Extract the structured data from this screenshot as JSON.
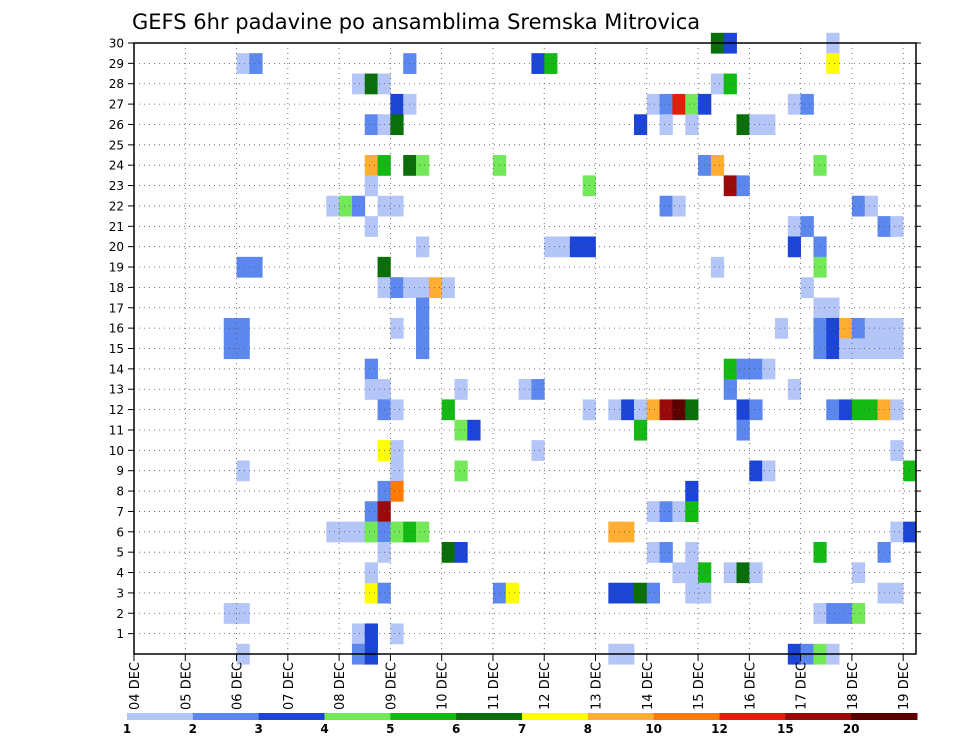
{
  "chart_data": {
    "type": "heatmap",
    "title": "GEFS 6hr padavine po ansamblima Sremska Mitrovica",
    "xlabel": "",
    "ylabel": "",
    "x_ticks": [
      "04 DEC",
      "05 DEC",
      "06 DEC",
      "07 DEC",
      "08 DEC",
      "09 DEC",
      "10 DEC",
      "11 DEC",
      "12 DEC",
      "13 DEC",
      "14 DEC",
      "15 DEC",
      "16 DEC",
      "17 DEC",
      "18 DEC",
      "19 DEC"
    ],
    "x_range_days": [
      0,
      15.25
    ],
    "y_range": [
      0,
      30
    ],
    "y_ticks": [
      1,
      2,
      3,
      4,
      5,
      6,
      7,
      8,
      9,
      10,
      11,
      12,
      13,
      14,
      15,
      16,
      17,
      18,
      19,
      20,
      21,
      22,
      23,
      24,
      25,
      26,
      27,
      28,
      29,
      30
    ],
    "grid": true,
    "legend_position": "bottom",
    "color_scale": {
      "colors": [
        "#b3c6f7",
        "#5c87ee",
        "#1c45d7",
        "#73e95a",
        "#14ba14",
        "#0a6e0a",
        "#ffff00",
        "#ffae32",
        "#ff7a00",
        "#e0200a",
        "#9b0a0a",
        "#5a0000"
      ],
      "labels": [
        "1",
        "2",
        "3",
        "4",
        "5",
        "6",
        "7",
        "8",
        "10",
        "12",
        "15",
        "20"
      ]
    },
    "cells_note": "each cell: [member, day_offset_start, color_index]; day 0 = 04 DEC 00z, cell width = 0.25 day",
    "cells": [
      [
        30,
        11.25,
        5
      ],
      [
        30,
        11.5,
        2
      ],
      [
        30,
        13.5,
        0
      ],
      [
        29,
        2,
        0
      ],
      [
        29,
        2.25,
        1
      ],
      [
        29,
        5.25,
        1
      ],
      [
        29,
        7.75,
        2
      ],
      [
        29,
        8,
        4
      ],
      [
        29,
        13.5,
        6
      ],
      [
        28,
        4.25,
        0
      ],
      [
        28,
        4.5,
        5
      ],
      [
        28,
        4.75,
        0
      ],
      [
        28,
        11.25,
        0
      ],
      [
        28,
        11.5,
        4
      ],
      [
        27,
        5,
        2
      ],
      [
        27,
        5.25,
        0
      ],
      [
        27,
        10,
        0
      ],
      [
        27,
        10.25,
        1
      ],
      [
        27,
        10.5,
        9
      ],
      [
        27,
        10.75,
        3
      ],
      [
        27,
        11,
        2
      ],
      [
        27,
        12.75,
        0
      ],
      [
        27,
        13,
        1
      ],
      [
        26,
        4.5,
        1
      ],
      [
        26,
        4.75,
        0
      ],
      [
        26,
        5,
        5
      ],
      [
        26,
        9.75,
        2
      ],
      [
        26,
        10.25,
        0
      ],
      [
        26,
        10.75,
        0
      ],
      [
        26,
        11.75,
        5
      ],
      [
        26,
        12,
        0
      ],
      [
        26,
        12.25,
        0
      ],
      [
        24,
        4.5,
        7
      ],
      [
        24,
        4.75,
        4
      ],
      [
        24,
        5.25,
        5
      ],
      [
        24,
        5.5,
        3
      ],
      [
        24,
        7,
        3
      ],
      [
        24,
        11,
        1
      ],
      [
        24,
        11.25,
        7
      ],
      [
        24,
        13.25,
        3
      ],
      [
        23,
        4.5,
        0
      ],
      [
        23,
        8.75,
        3
      ],
      [
        23,
        11.5,
        10
      ],
      [
        23,
        11.75,
        1
      ],
      [
        22,
        3.75,
        0
      ],
      [
        22,
        4,
        3
      ],
      [
        22,
        4.25,
        1
      ],
      [
        22,
        4.75,
        0
      ],
      [
        22,
        5,
        0
      ],
      [
        22,
        10.25,
        1
      ],
      [
        22,
        10.5,
        0
      ],
      [
        22,
        14,
        1
      ],
      [
        22,
        14.25,
        0
      ],
      [
        21,
        4.5,
        0
      ],
      [
        21,
        12.75,
        0
      ],
      [
        21,
        13,
        1
      ],
      [
        21,
        14.5,
        1
      ],
      [
        21,
        14.75,
        0
      ],
      [
        20,
        5.5,
        0
      ],
      [
        20,
        8,
        0
      ],
      [
        20,
        8.25,
        0
      ],
      [
        20,
        8.5,
        2
      ],
      [
        20,
        8.75,
        2
      ],
      [
        20,
        12.75,
        2
      ],
      [
        20,
        13.25,
        1
      ],
      [
        19,
        2,
        1
      ],
      [
        19,
        2.25,
        1
      ],
      [
        19,
        4.75,
        5
      ],
      [
        19,
        11.25,
        0
      ],
      [
        19,
        13.25,
        3
      ],
      [
        18,
        4.75,
        0
      ],
      [
        18,
        5,
        1
      ],
      [
        18,
        5.25,
        0
      ],
      [
        18,
        5.5,
        0
      ],
      [
        18,
        5.75,
        7
      ],
      [
        18,
        6,
        0
      ],
      [
        18,
        13,
        0
      ],
      [
        17,
        5.5,
        1
      ],
      [
        17,
        13.25,
        0
      ],
      [
        17,
        13.5,
        0
      ],
      [
        16,
        1.75,
        1
      ],
      [
        16,
        2,
        1
      ],
      [
        16,
        5,
        0
      ],
      [
        16,
        5.5,
        1
      ],
      [
        16,
        12.5,
        0
      ],
      [
        16,
        13.25,
        1
      ],
      [
        16,
        13.5,
        2
      ],
      [
        16,
        13.75,
        7
      ],
      [
        16,
        14,
        1
      ],
      [
        16,
        14.25,
        0
      ],
      [
        16,
        14.5,
        0
      ],
      [
        16,
        14.75,
        0
      ],
      [
        15,
        1.75,
        1
      ],
      [
        15,
        2,
        1
      ],
      [
        15,
        5.5,
        1
      ],
      [
        15,
        13.25,
        1
      ],
      [
        15,
        13.5,
        2
      ],
      [
        15,
        13.75,
        0
      ],
      [
        15,
        14,
        0
      ],
      [
        15,
        14.25,
        0
      ],
      [
        15,
        14.5,
        0
      ],
      [
        15,
        14.75,
        0
      ],
      [
        14,
        4.5,
        1
      ],
      [
        14,
        11.5,
        4
      ],
      [
        14,
        11.75,
        1
      ],
      [
        14,
        12,
        1
      ],
      [
        14,
        12.25,
        0
      ],
      [
        13,
        4.5,
        0
      ],
      [
        13,
        4.75,
        0
      ],
      [
        13,
        6.25,
        0
      ],
      [
        13,
        7.5,
        0
      ],
      [
        13,
        7.75,
        1
      ],
      [
        13,
        11.5,
        1
      ],
      [
        13,
        12.75,
        0
      ],
      [
        12,
        4.75,
        1
      ],
      [
        12,
        5,
        0
      ],
      [
        12,
        6,
        4
      ],
      [
        12,
        8.75,
        0
      ],
      [
        12,
        9.25,
        0
      ],
      [
        12,
        9.5,
        2
      ],
      [
        12,
        9.75,
        0
      ],
      [
        12,
        10,
        7
      ],
      [
        12,
        10.25,
        10
      ],
      [
        12,
        10.5,
        11
      ],
      [
        12,
        10.75,
        5
      ],
      [
        12,
        11.75,
        2
      ],
      [
        12,
        12,
        1
      ],
      [
        12,
        13.5,
        1
      ],
      [
        12,
        13.75,
        2
      ],
      [
        12,
        14,
        4
      ],
      [
        12,
        14.25,
        4
      ],
      [
        12,
        14.5,
        7
      ],
      [
        12,
        14.75,
        0
      ],
      [
        11,
        6.25,
        3
      ],
      [
        11,
        6.5,
        2
      ],
      [
        11,
        9.75,
        4
      ],
      [
        11,
        11.75,
        1
      ],
      [
        10,
        4.75,
        6
      ],
      [
        10,
        5,
        0
      ],
      [
        10,
        7.75,
        0
      ],
      [
        10,
        14.75,
        0
      ],
      [
        9,
        2,
        0
      ],
      [
        9,
        5,
        0
      ],
      [
        9,
        6.25,
        3
      ],
      [
        9,
        12,
        2
      ],
      [
        9,
        12.25,
        0
      ],
      [
        9,
        15,
        4
      ],
      [
        8,
        4.75,
        1
      ],
      [
        8,
        5,
        8
      ],
      [
        8,
        10.75,
        2
      ],
      [
        7,
        4.5,
        1
      ],
      [
        7,
        4.75,
        10
      ],
      [
        7,
        10,
        0
      ],
      [
        7,
        10.25,
        1
      ],
      [
        7,
        10.5,
        0
      ],
      [
        7,
        10.75,
        4
      ],
      [
        6,
        3.75,
        0
      ],
      [
        6,
        4,
        0
      ],
      [
        6,
        4.25,
        0
      ],
      [
        6,
        4.5,
        3
      ],
      [
        6,
        4.75,
        1
      ],
      [
        6,
        5,
        3
      ],
      [
        6,
        5.25,
        4
      ],
      [
        6,
        5.5,
        3
      ],
      [
        6,
        9.25,
        7
      ],
      [
        6,
        9.5,
        7
      ],
      [
        6,
        14.75,
        0
      ],
      [
        6,
        15,
        2
      ],
      [
        5,
        4.75,
        0
      ],
      [
        5,
        6,
        5
      ],
      [
        5,
        6.25,
        2
      ],
      [
        5,
        10,
        0
      ],
      [
        5,
        10.25,
        1
      ],
      [
        5,
        10.75,
        0
      ],
      [
        5,
        13.25,
        4
      ],
      [
        5,
        14.5,
        1
      ],
      [
        4,
        10.5,
        0
      ],
      [
        4,
        10.75,
        0
      ],
      [
        4,
        11,
        4
      ],
      [
        4,
        11.5,
        0
      ],
      [
        4,
        11.75,
        5
      ],
      [
        4,
        12,
        0
      ],
      [
        4,
        14,
        0
      ],
      [
        3,
        4.5,
        6
      ],
      [
        4,
        4.5,
        0
      ],
      [
        3,
        4.75,
        1
      ],
      [
        3,
        7,
        1
      ],
      [
        3,
        7.25,
        6
      ],
      [
        3,
        9.25,
        2
      ],
      [
        3,
        9.5,
        2
      ],
      [
        3,
        9.75,
        5
      ],
      [
        3,
        10,
        1
      ],
      [
        3,
        10.75,
        0
      ],
      [
        3,
        11,
        0
      ],
      [
        3,
        14.5,
        0
      ],
      [
        3,
        14.75,
        0
      ],
      [
        2,
        1.75,
        0
      ],
      [
        2,
        2,
        0
      ],
      [
        2,
        13.25,
        0
      ],
      [
        2,
        13.5,
        1
      ],
      [
        2,
        13.75,
        1
      ],
      [
        2,
        14,
        3
      ],
      [
        1,
        4.25,
        0
      ],
      [
        1,
        4.5,
        2
      ],
      [
        1,
        5,
        0
      ],
      [
        0,
        2,
        0
      ],
      [
        0,
        4.25,
        1
      ],
      [
        0,
        4.5,
        2
      ],
      [
        0,
        9.25,
        0
      ],
      [
        0,
        9.5,
        0
      ],
      [
        0,
        12.75,
        2
      ],
      [
        0,
        13,
        1
      ],
      [
        0,
        13.25,
        3
      ],
      [
        0,
        13.5,
        0
      ]
    ]
  }
}
